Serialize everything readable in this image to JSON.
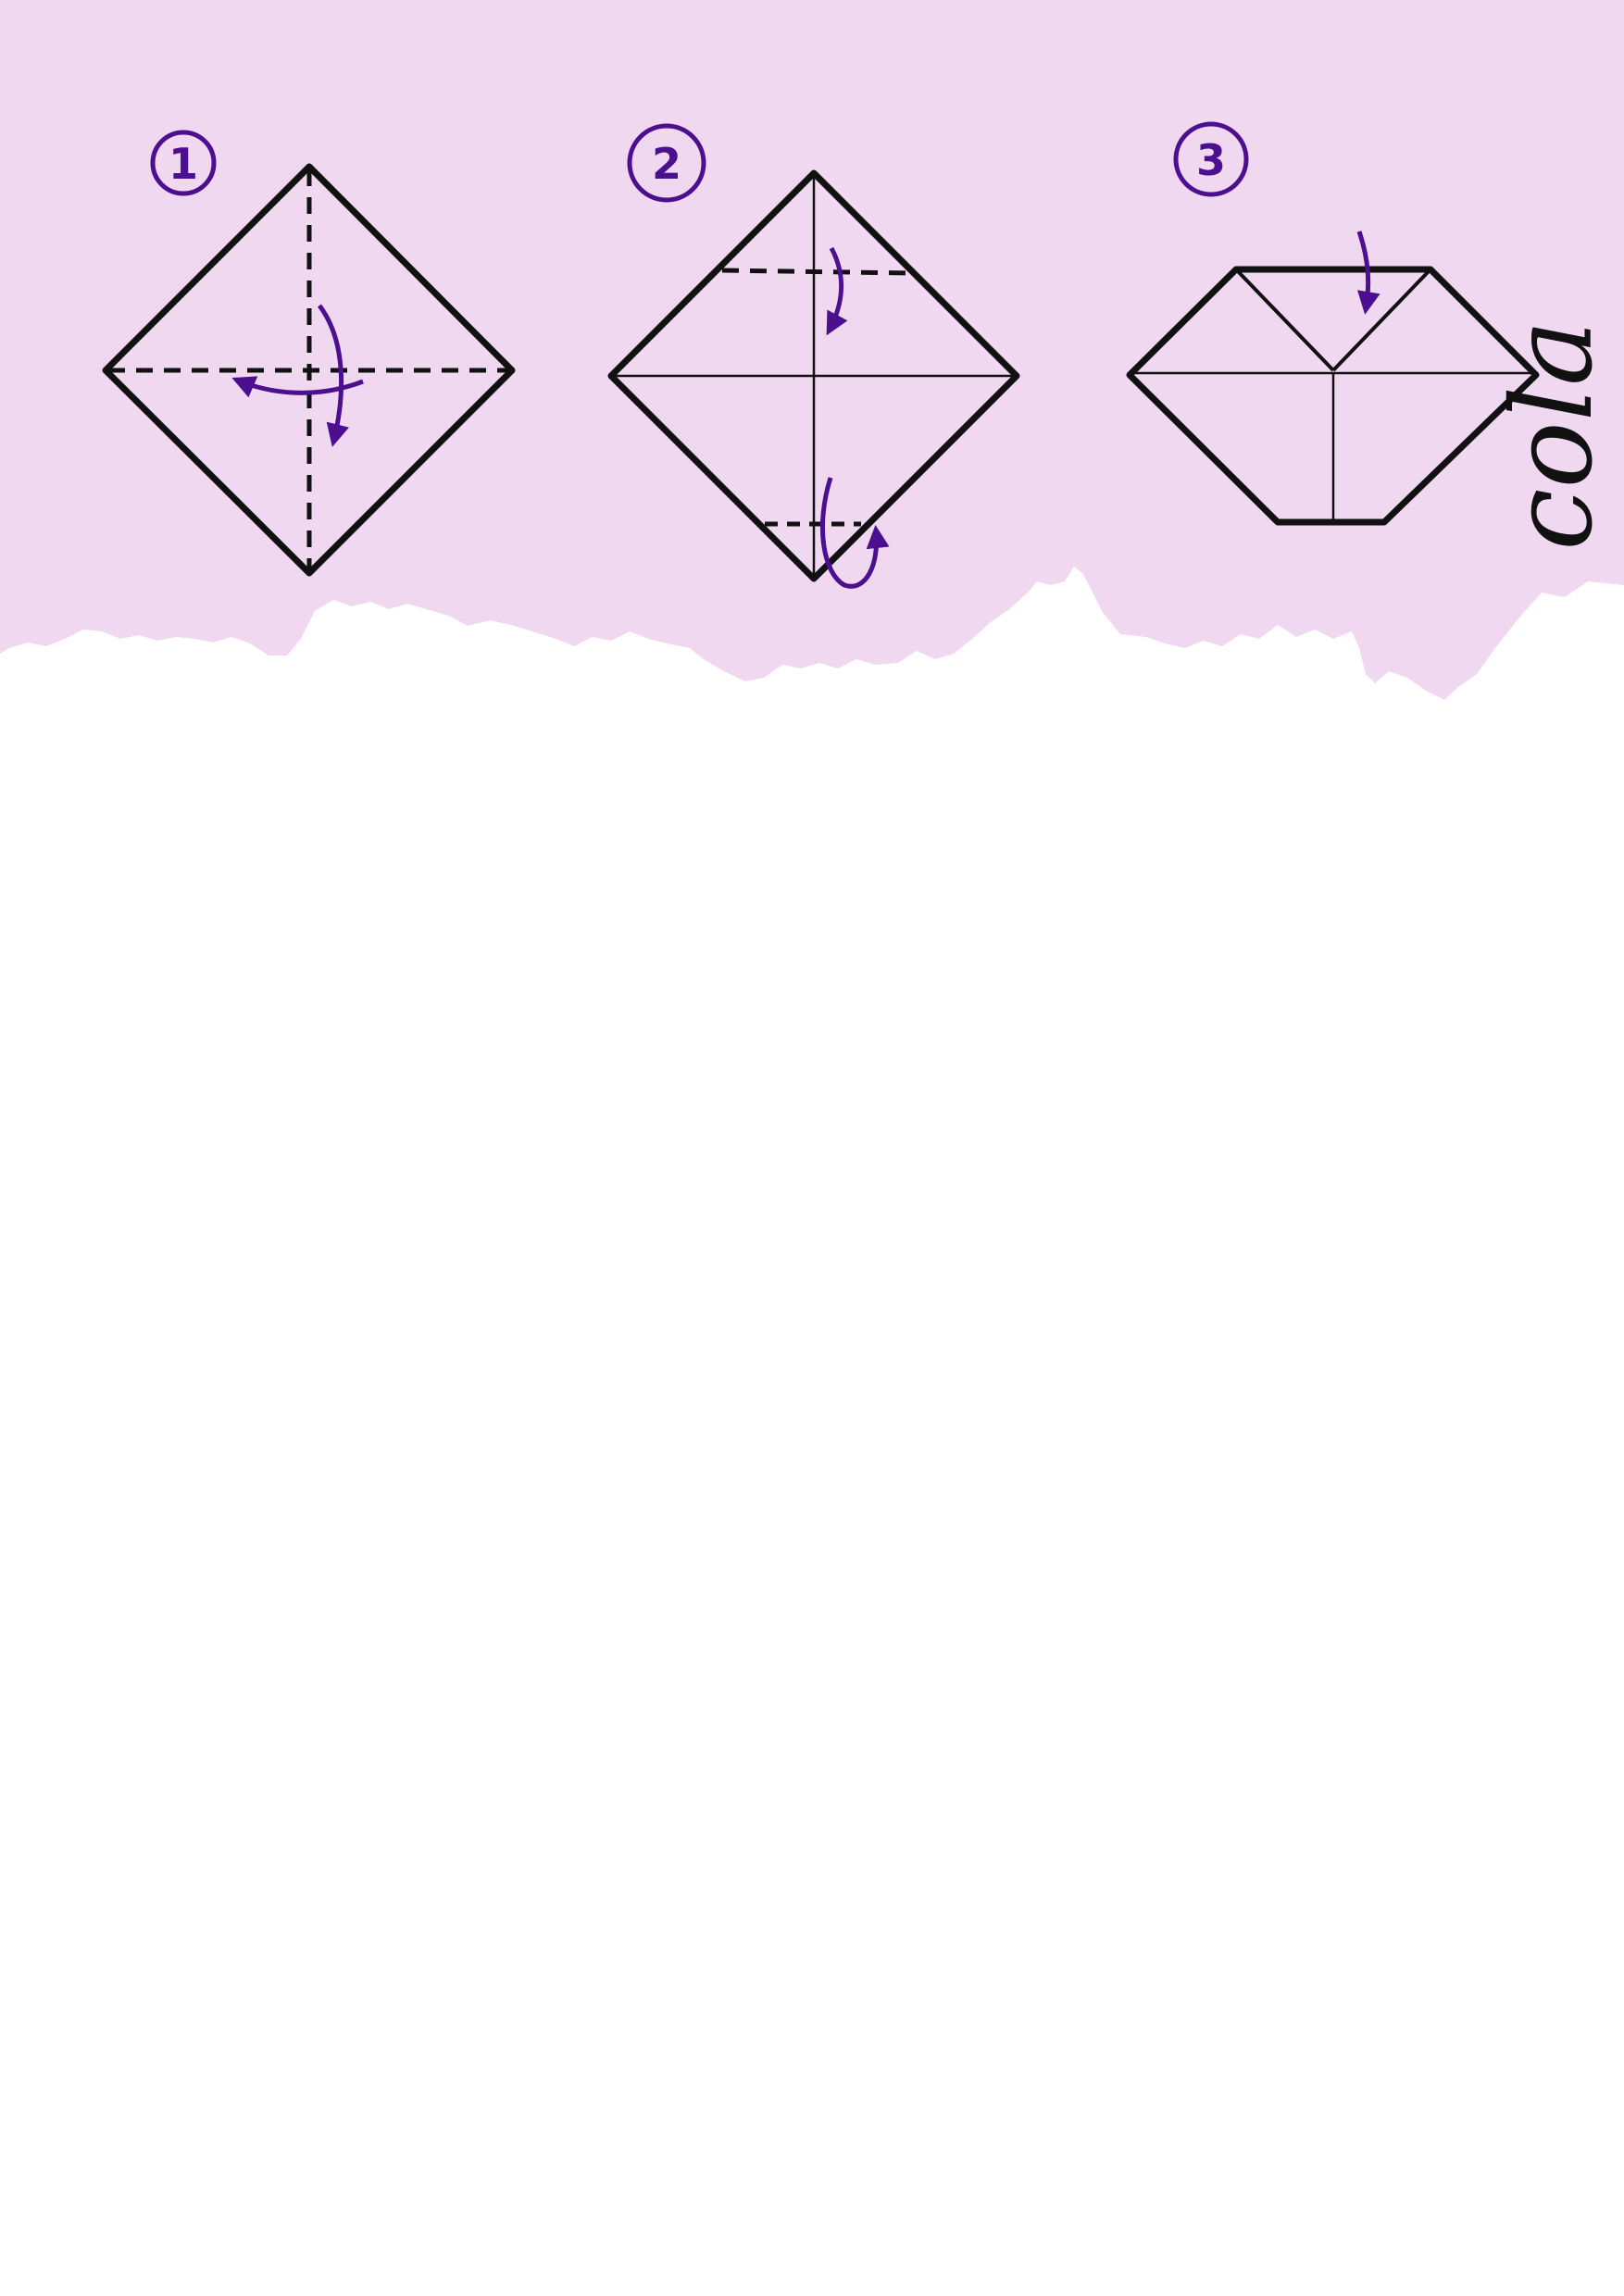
{
  "colors": {
    "band": "#f0d8f0",
    "paper": "#ffffff",
    "ink": "#111111",
    "accent": "#4b0f8f"
  },
  "steps": [
    {
      "number": "1"
    },
    {
      "number": "2"
    },
    {
      "number": "3"
    }
  ],
  "side_text": "cola"
}
